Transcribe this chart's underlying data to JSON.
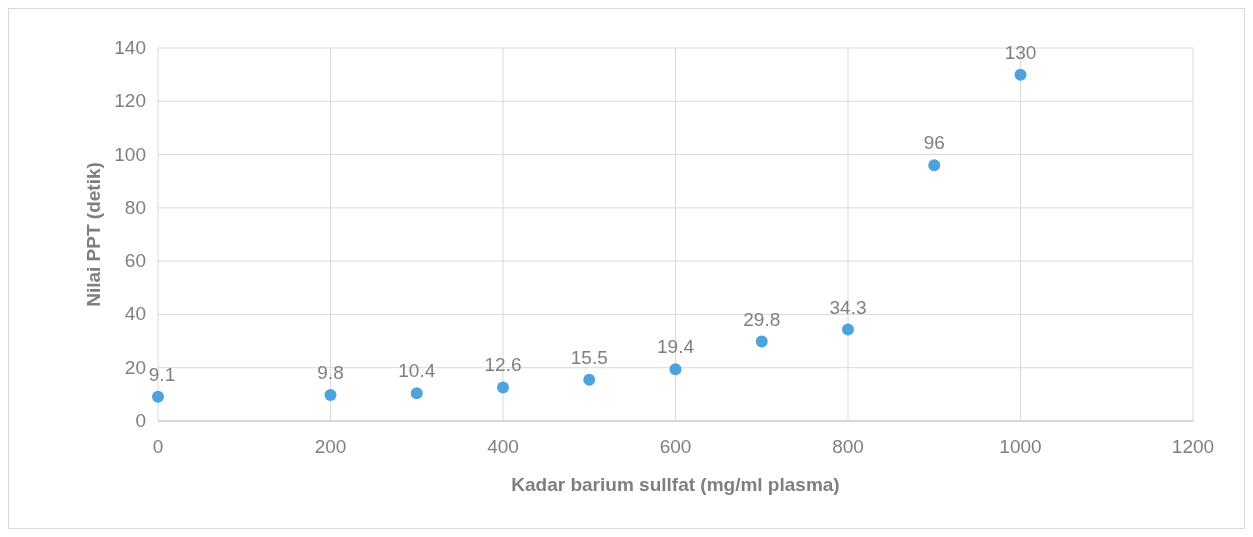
{
  "chart_data": {
    "type": "scatter",
    "xlabel": "Kadar barium sullfat (mg/ml plasma)",
    "ylabel": "Nilai PPT (detik)",
    "x": [
      0,
      200,
      300,
      400,
      500,
      600,
      700,
      800,
      900,
      1000
    ],
    "series": [
      {
        "color": "#4fa3dc",
        "values": [
          9.1,
          9.8,
          10.4,
          12.6,
          15.5,
          19.4,
          29.8,
          34.3,
          96,
          130
        ]
      }
    ],
    "xlim": [
      0,
      1200
    ],
    "xticks": [
      0,
      200,
      400,
      600,
      800,
      1000,
      1200
    ],
    "ylim": [
      0,
      140
    ],
    "yticks": [
      0,
      20,
      40,
      60,
      80,
      100,
      120,
      140
    ],
    "grid": true,
    "marker": "circle",
    "data_labels": true
  }
}
